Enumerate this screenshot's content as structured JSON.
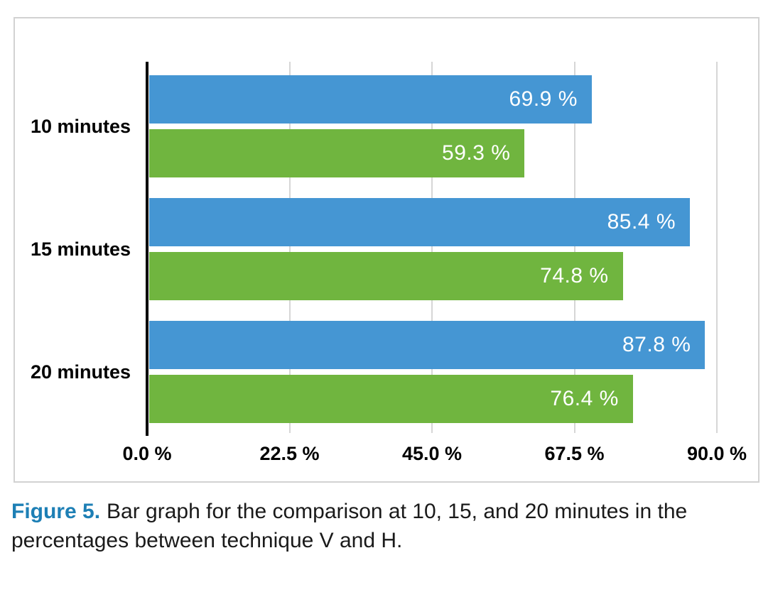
{
  "caption": {
    "label": "Figure 5.",
    "text": "Bar graph for the comparison at 10, 15, and 20 minutes in the percentages between technique V and H."
  },
  "chart_data": {
    "type": "bar",
    "orientation": "horizontal",
    "title": "",
    "categories": [
      "10 minutes",
      "15 minutes",
      "20 minutes"
    ],
    "series": [
      {
        "name": "blue-series (technique V)",
        "color": "#4596d3",
        "values": [
          69.9,
          85.4,
          87.8
        ]
      },
      {
        "name": "green-series (technique H)",
        "color": "#70b53f",
        "values": [
          59.3,
          74.8,
          76.4
        ]
      }
    ],
    "value_label_suffix": " %",
    "bar_label_color": "#ffffff",
    "x_ticks": [
      "0.0 %",
      "22.5 %",
      "45.0 %",
      "67.5 %",
      "90.0 %"
    ],
    "x_tick_step": 22.5,
    "xlim": [
      0,
      90
    ],
    "grid": true,
    "gridline_color": "#d6d6d6",
    "axis_color": "#000000",
    "legend": "none"
  }
}
